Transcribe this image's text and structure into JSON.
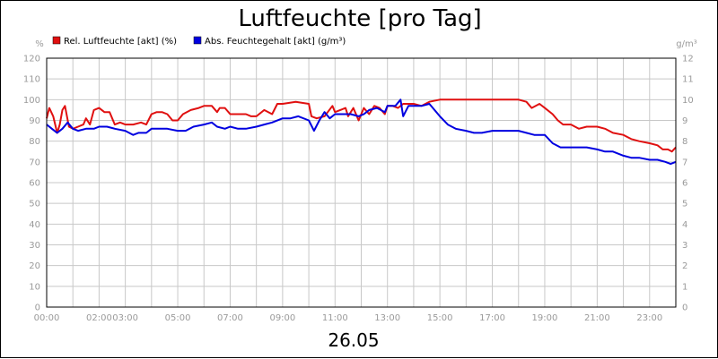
{
  "chart_data": {
    "type": "line",
    "title": "Luftfeuchte [pro Tag]",
    "date_label": "26.05",
    "left_unit": "%",
    "right_unit": "g/m³",
    "x_range": [
      0,
      24
    ],
    "x_ticks": [
      {
        "value": 0,
        "label": "00:00"
      },
      {
        "value": 2,
        "label": "02:00"
      },
      {
        "value": 3,
        "label": "03:00"
      },
      {
        "value": 5,
        "label": "05:00"
      },
      {
        "value": 7,
        "label": "07:00"
      },
      {
        "value": 9,
        "label": "09:00"
      },
      {
        "value": 11,
        "label": "11:00"
      },
      {
        "value": 13,
        "label": "13:00"
      },
      {
        "value": 15,
        "label": "15:00"
      },
      {
        "value": 17,
        "label": "17:00"
      },
      {
        "value": 19,
        "label": "19:00"
      },
      {
        "value": 21,
        "label": "21:00"
      },
      {
        "value": 23,
        "label": "23:00"
      }
    ],
    "y_left": {
      "range": [
        0,
        120
      ],
      "ticks": [
        "0",
        "10",
        "20",
        "30",
        "40",
        "50",
        "60",
        "70",
        "80",
        "90",
        "100",
        "110",
        "120"
      ]
    },
    "y_right": {
      "range": [
        0,
        12
      ],
      "ticks": [
        "0",
        "1",
        "2",
        "3",
        "4",
        "5",
        "6",
        "7",
        "8",
        "9",
        "10",
        "11",
        "12"
      ]
    },
    "grid": true,
    "legend_position": "top-left",
    "series": [
      {
        "name": "Rel. Luftfeuchte [akt] (%)",
        "color": "#e01010",
        "axis": "left",
        "x": [
          0,
          0.1,
          0.25,
          0.4,
          0.5,
          0.6,
          0.7,
          0.85,
          1.0,
          1.2,
          1.4,
          1.5,
          1.65,
          1.8,
          2.0,
          2.2,
          2.4,
          2.6,
          2.8,
          3.0,
          3.3,
          3.6,
          3.8,
          4.0,
          4.2,
          4.4,
          4.6,
          4.8,
          5.0,
          5.2,
          5.5,
          5.8,
          6.0,
          6.3,
          6.5,
          6.6,
          6.8,
          7.0,
          7.3,
          7.6,
          7.8,
          8.0,
          8.3,
          8.6,
          8.8,
          9.0,
          9.5,
          10.0,
          10.1,
          10.3,
          10.6,
          10.9,
          11.0,
          11.2,
          11.4,
          11.5,
          11.7,
          11.9,
          12.1,
          12.3,
          12.5,
          12.7,
          12.9,
          13.0,
          13.2,
          13.4,
          13.6,
          13.8,
          14.0,
          14.3,
          14.6,
          15.0,
          15.5,
          16.0,
          17.0,
          18.0,
          18.3,
          18.5,
          18.8,
          19.0,
          19.3,
          19.5,
          19.7,
          20.0,
          20.3,
          20.6,
          21.0,
          21.3,
          21.6,
          22.0,
          22.3,
          22.6,
          23.0,
          23.3,
          23.5,
          23.7,
          23.85,
          24.0
        ],
        "values": [
          91,
          96,
          92,
          84,
          88,
          95,
          97,
          87,
          86,
          87,
          88,
          91,
          88,
          95,
          96,
          94,
          94,
          88,
          89,
          88,
          88,
          89,
          88,
          93,
          94,
          94,
          93,
          90,
          90,
          93,
          95,
          96,
          97,
          97,
          94,
          96,
          96,
          93,
          93,
          93,
          92,
          92,
          95,
          93,
          98,
          98,
          99,
          98,
          92,
          91,
          92,
          97,
          94,
          95,
          96,
          92,
          96,
          90,
          96,
          93,
          97,
          96,
          93,
          97,
          97,
          96,
          98,
          98,
          98,
          97,
          99,
          100,
          100,
          100,
          100,
          100,
          99,
          96,
          98,
          96,
          93,
          90,
          88,
          88,
          86,
          87,
          87,
          86,
          84,
          83,
          81,
          80,
          79,
          78,
          76,
          76,
          75,
          77
        ]
      },
      {
        "name": "Abs. Feuchtegehalt [akt] (g/m³)",
        "color": "#0000e0",
        "axis": "right",
        "x": [
          0,
          0.2,
          0.4,
          0.6,
          0.8,
          1.0,
          1.2,
          1.5,
          1.8,
          2.0,
          2.3,
          2.6,
          3.0,
          3.3,
          3.5,
          3.8,
          4.0,
          4.3,
          4.6,
          5.0,
          5.3,
          5.6,
          6.0,
          6.3,
          6.5,
          6.8,
          7.0,
          7.3,
          7.6,
          8.0,
          8.3,
          8.6,
          9.0,
          9.3,
          9.6,
          10.0,
          10.2,
          10.4,
          10.6,
          10.8,
          11.0,
          11.3,
          11.6,
          11.9,
          12.1,
          12.3,
          12.6,
          12.9,
          13.0,
          13.3,
          13.5,
          13.6,
          13.8,
          14.0,
          14.3,
          14.6,
          15.0,
          15.3,
          15.6,
          16.0,
          16.3,
          16.6,
          17.0,
          17.3,
          17.6,
          18.0,
          18.3,
          18.6,
          19.0,
          19.3,
          19.6,
          20.0,
          20.3,
          20.6,
          21.0,
          21.3,
          21.6,
          22.0,
          22.3,
          22.6,
          23.0,
          23.3,
          23.6,
          23.8,
          24.0
        ],
        "values": [
          8.8,
          8.6,
          8.4,
          8.6,
          8.9,
          8.6,
          8.5,
          8.6,
          8.6,
          8.7,
          8.7,
          8.6,
          8.5,
          8.3,
          8.4,
          8.4,
          8.6,
          8.6,
          8.6,
          8.5,
          8.5,
          8.7,
          8.8,
          8.9,
          8.7,
          8.6,
          8.7,
          8.6,
          8.6,
          8.7,
          8.8,
          8.9,
          9.1,
          9.1,
          9.2,
          9.0,
          8.5,
          9.0,
          9.4,
          9.1,
          9.3,
          9.3,
          9.3,
          9.2,
          9.3,
          9.5,
          9.6,
          9.4,
          9.7,
          9.7,
          10.0,
          9.2,
          9.7,
          9.7,
          9.7,
          9.8,
          9.2,
          8.8,
          8.6,
          8.5,
          8.4,
          8.4,
          8.5,
          8.5,
          8.5,
          8.5,
          8.4,
          8.3,
          8.3,
          7.9,
          7.7,
          7.7,
          7.7,
          7.7,
          7.6,
          7.5,
          7.5,
          7.3,
          7.2,
          7.2,
          7.1,
          7.1,
          7.0,
          6.9,
          7.0
        ]
      }
    ]
  }
}
